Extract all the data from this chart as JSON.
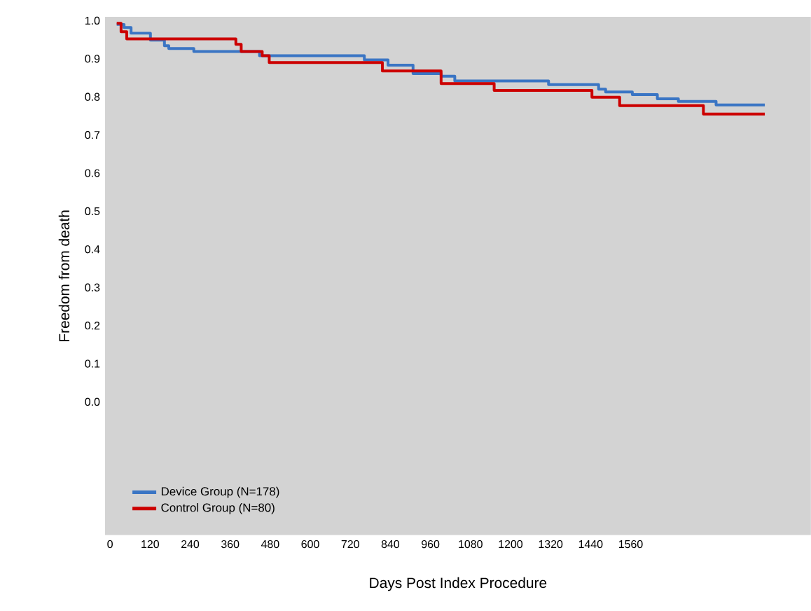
{
  "chart_data": {
    "type": "step",
    "xlabel": "Days Post Index Procedure",
    "ylabel": "Freedom from death",
    "xlim": [
      -15,
      2100
    ],
    "ylim": [
      -0.35,
      1.01
    ],
    "xticks": [
      0,
      120,
      240,
      360,
      480,
      600,
      720,
      840,
      960,
      1080,
      1200,
      1320,
      1440,
      1560
    ],
    "yticks": [
      {
        "value": 0,
        "label": "0.0"
      },
      {
        "value": 0.1,
        "label": "0.1"
      },
      {
        "value": 0.2,
        "label": "0.2"
      },
      {
        "value": 0.3,
        "label": "0.3"
      },
      {
        "value": 0.4,
        "label": "0.4"
      },
      {
        "value": 0.5,
        "label": "0.5"
      },
      {
        "value": 0.6,
        "label": "0.6"
      },
      {
        "value": 0.7,
        "label": "0.7"
      },
      {
        "value": 0.8,
        "label": "0.8"
      },
      {
        "value": 0.9,
        "label": "0.9"
      },
      {
        "value": 1.0,
        "label": "1.0"
      }
    ],
    "grid": false,
    "legend": "bottom left",
    "series": [
      {
        "name": "Device Group (N=178)",
        "color": "#3a75c4",
        "x": [
          20,
          42,
          63,
          121,
          163,
          176,
          251,
          448,
          762,
          833,
          908,
          992,
          1033,
          1314,
          1464,
          1485,
          1565,
          1640,
          1703,
          1816,
          1962
        ],
        "values": [
          0.99,
          0.982,
          0.967,
          0.949,
          0.934,
          0.927,
          0.919,
          0.908,
          0.897,
          0.883,
          0.861,
          0.854,
          0.842,
          0.832,
          0.82,
          0.813,
          0.806,
          0.795,
          0.788,
          0.779,
          0.779
        ]
      },
      {
        "name": "Control Group (N=80)",
        "color": "#cc0000",
        "x": [
          20,
          33,
          50,
          377,
          393,
          456,
          477,
          816,
          992,
          1151,
          1444,
          1527,
          1778,
          1962
        ],
        "values": [
          0.993,
          0.971,
          0.952,
          0.938,
          0.919,
          0.908,
          0.89,
          0.868,
          0.835,
          0.817,
          0.799,
          0.777,
          0.755,
          0.755
        ]
      }
    ]
  }
}
